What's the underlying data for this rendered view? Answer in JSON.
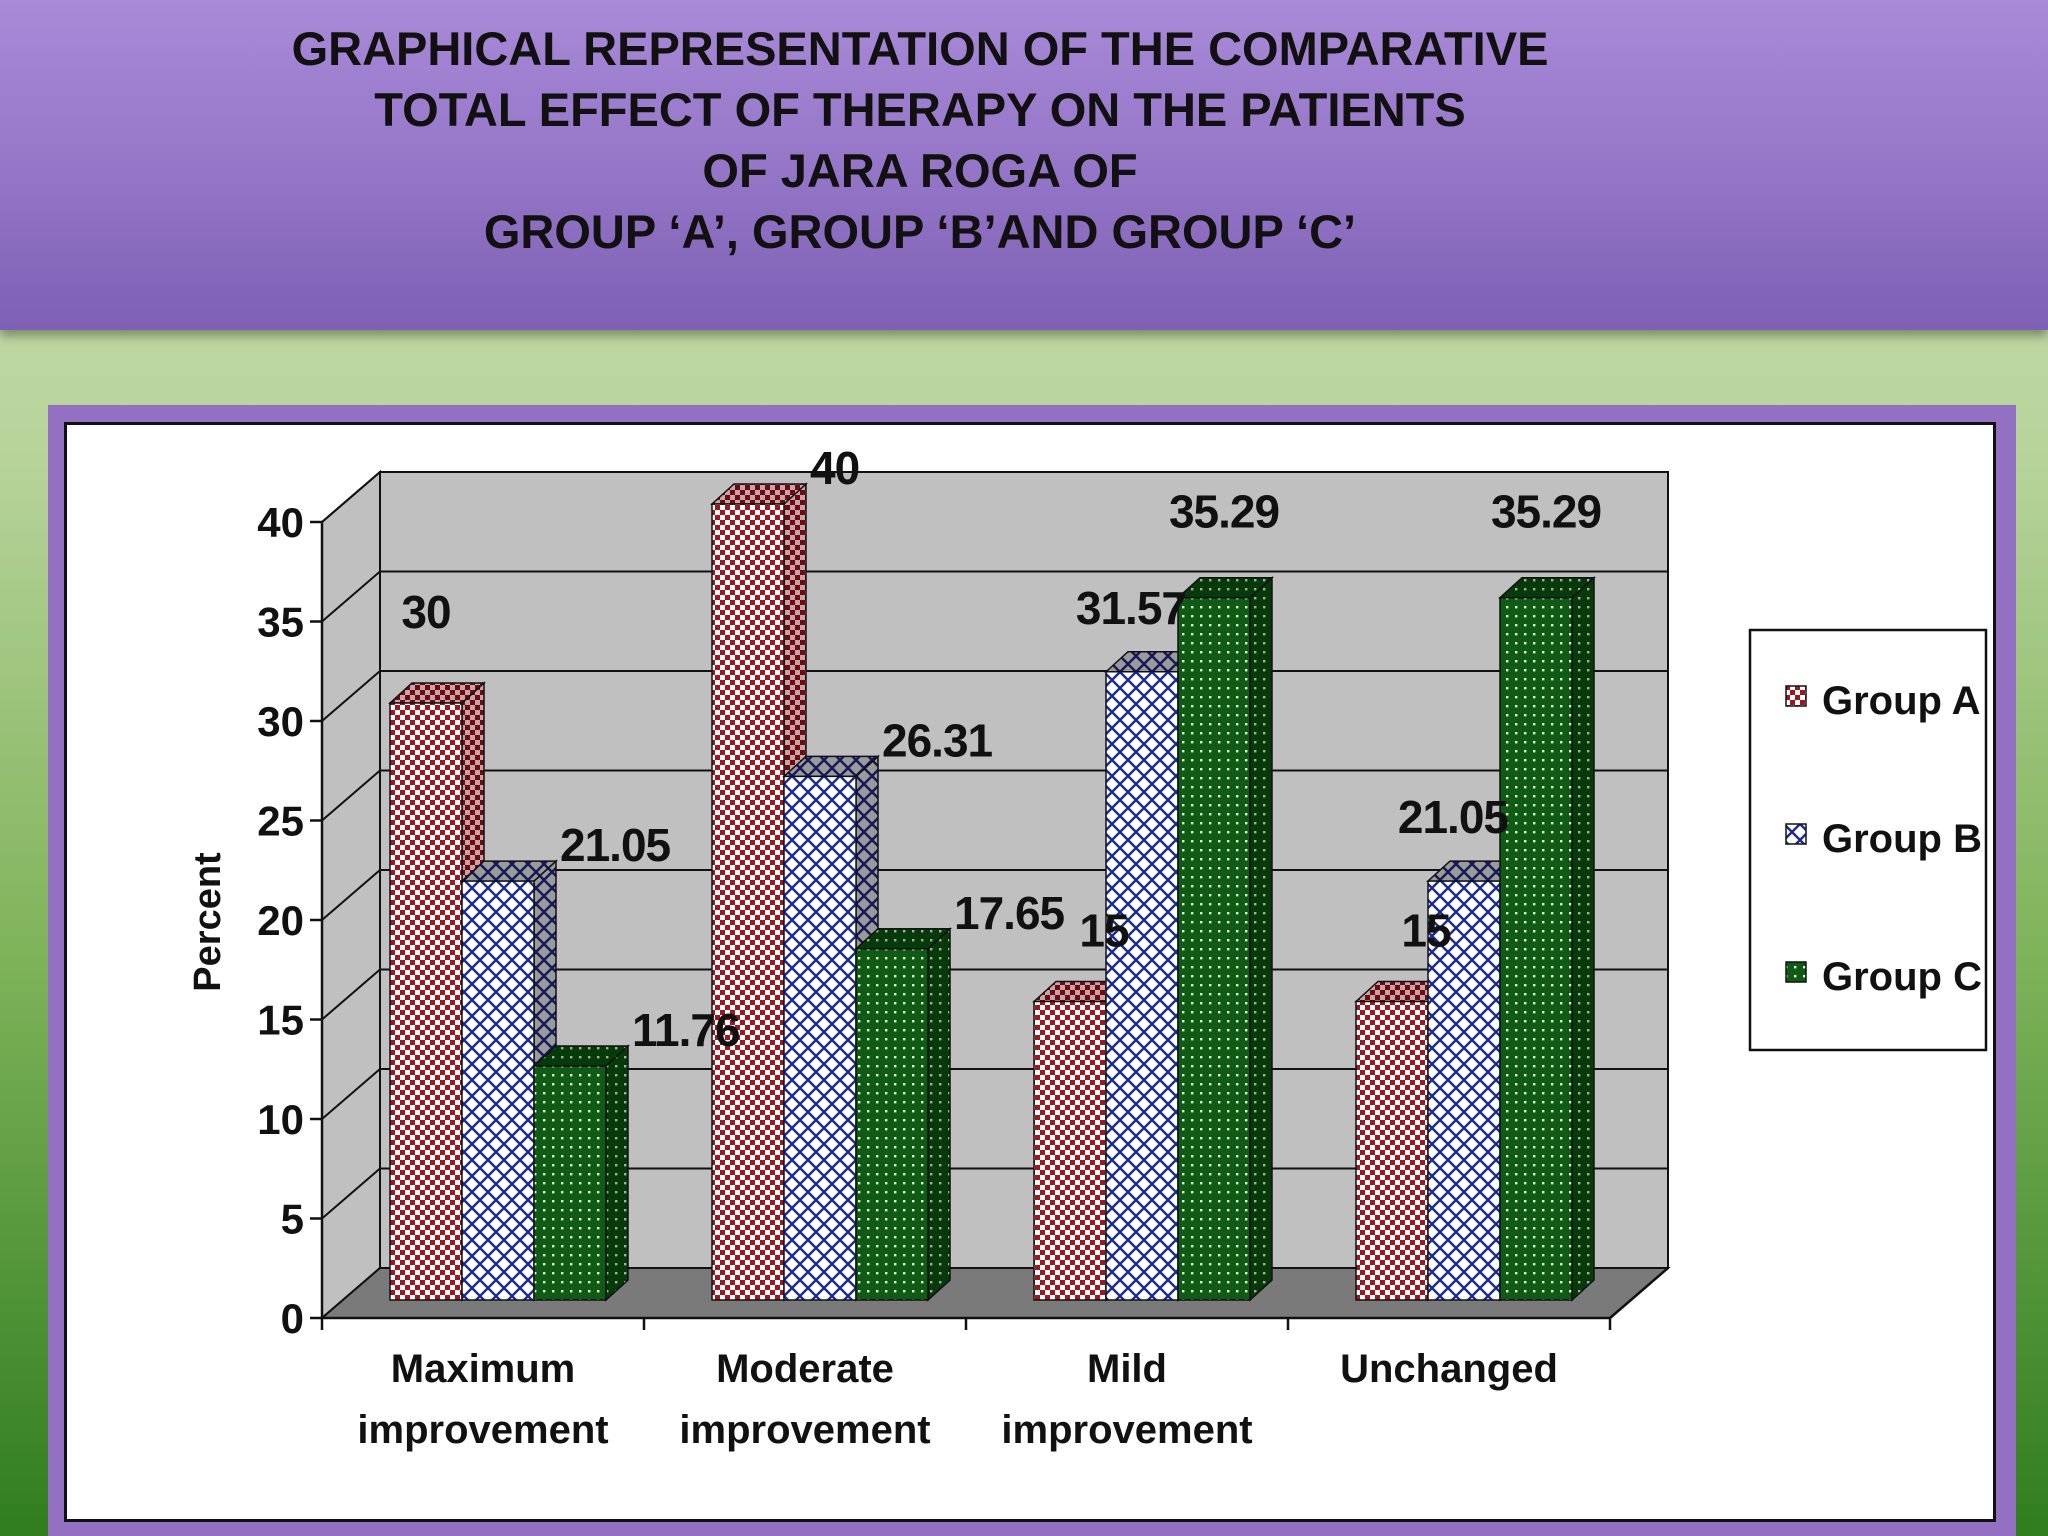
{
  "title_lines": [
    "GRAPHICAL REPRESENTATION OF THE COMPARATIVE",
    "TOTAL EFFECT OF THERAPY ON THE PATIENTS",
    "OF JARA ROGA OF",
    "GROUP ‘A’, GROUP ‘B’AND GROUP ‘C’"
  ],
  "chart_data": {
    "type": "bar",
    "title": "GRAPHICAL REPRESENTATION OF THE COMPARATIVE TOTAL EFFECT OF THERAPY ON THE PATIENTS OF JARA ROGA OF GROUP ‘A’, GROUP ‘B’AND GROUP ‘C’",
    "categories": [
      [
        "Maximum",
        "improvement"
      ],
      [
        "Moderate",
        "improvement"
      ],
      [
        "Mild",
        "improvement"
      ],
      [
        "Unchanged"
      ]
    ],
    "series": [
      {
        "name": "Group A",
        "values": [
          30,
          40,
          15,
          15
        ],
        "labels": [
          "30",
          "40",
          "15",
          "15"
        ],
        "color": "#a0161e",
        "pattern": "checker"
      },
      {
        "name": "Group B",
        "values": [
          21.05,
          26.31,
          31.57,
          21.05
        ],
        "labels": [
          "21.05",
          "26.31",
          "31.57",
          "21.05"
        ],
        "color": "#1c2c8c",
        "pattern": "diamond"
      },
      {
        "name": "Group C",
        "values": [
          11.76,
          17.65,
          35.29,
          35.29
        ],
        "labels": [
          "11.76",
          "17.65",
          "35.29",
          "35.29"
        ],
        "color": "#0f5a14",
        "pattern": "dots"
      }
    ],
    "xlabel": "",
    "ylabel": "Percent",
    "ylim": [
      0,
      40
    ],
    "yticks": [
      0,
      5,
      10,
      15,
      20,
      25,
      30,
      35,
      40
    ],
    "grid": true,
    "legend": "right",
    "three_d": true
  }
}
